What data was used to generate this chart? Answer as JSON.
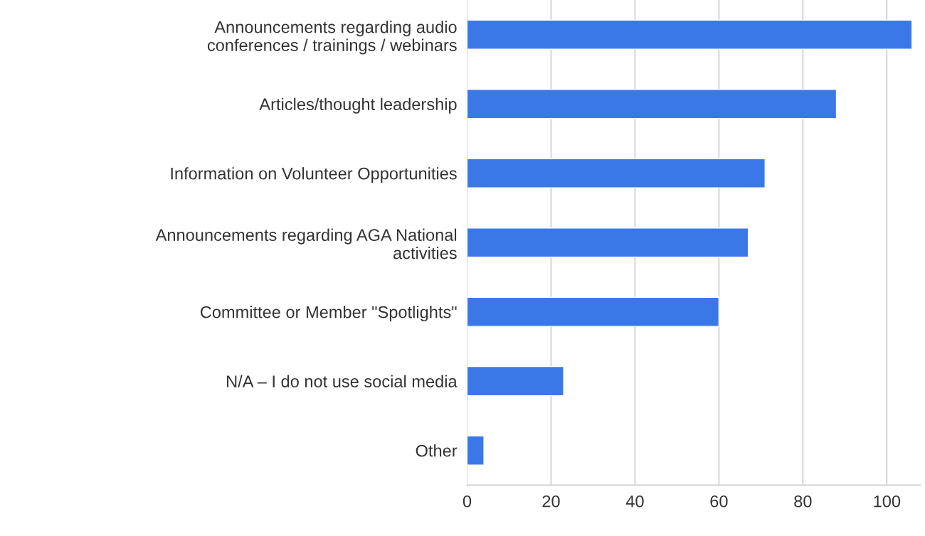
{
  "chart_data": {
    "type": "bar",
    "orientation": "horizontal",
    "categories": [
      "Announcements regarding audio\nconferences / trainings / webinars",
      "Articles/thought leadership",
      "Information on Volunteer Opportunities",
      "Announcements regarding AGA National\nactivities",
      "Committee or Member \"Spotlights\"",
      "N/A – I do not use social media",
      "Other"
    ],
    "values": [
      106,
      88,
      71,
      67,
      60,
      23,
      4
    ],
    "color": "#3b78e7",
    "xlim": [
      0,
      108
    ],
    "xticks": [
      0,
      20,
      40,
      60,
      80,
      100
    ],
    "grid": "x",
    "legend": false
  }
}
